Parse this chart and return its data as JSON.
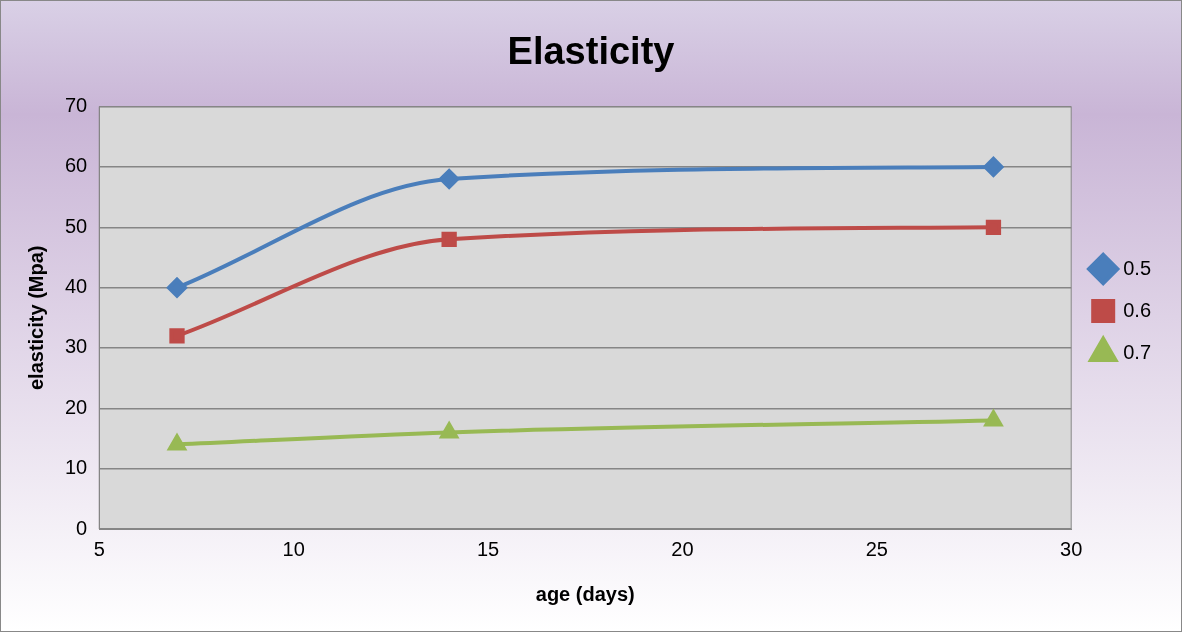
{
  "chart_data": {
    "type": "line",
    "title": "Elasticity",
    "xlabel": "age (days)",
    "ylabel": "elasticity (Mpa)",
    "x": [
      7,
      14,
      28
    ],
    "series": [
      {
        "name": "0.5",
        "color": "#4a7ebb",
        "marker": "diamond",
        "values": [
          40,
          58,
          60
        ]
      },
      {
        "name": "0.6",
        "color": "#be4b48",
        "marker": "square",
        "values": [
          32,
          48,
          50
        ]
      },
      {
        "name": "0.7",
        "color": "#98b954",
        "marker": "triangle",
        "values": [
          14,
          16,
          18
        ]
      }
    ],
    "xlim": [
      5,
      30
    ],
    "xticks": [
      5,
      10,
      15,
      20,
      25,
      30
    ],
    "ylim": [
      0,
      70
    ],
    "yticks": [
      0,
      10,
      20,
      30,
      40,
      50,
      60,
      70
    ],
    "grid": "y",
    "legend": "right"
  }
}
